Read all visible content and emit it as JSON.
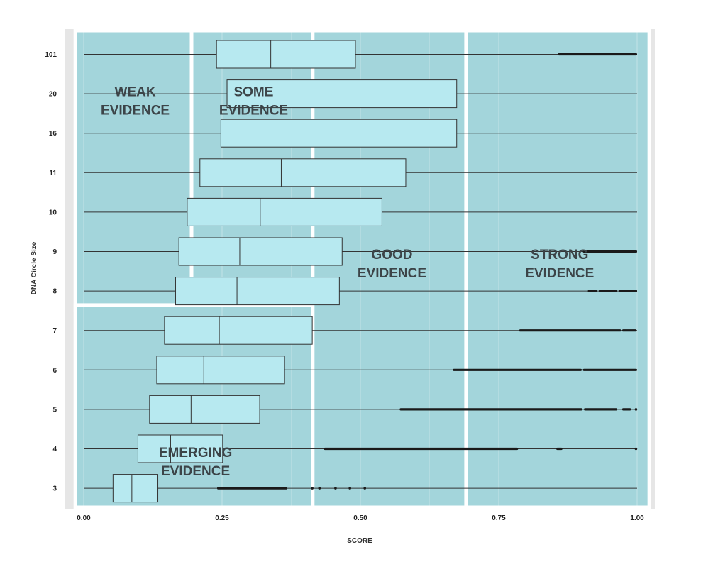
{
  "chart_data": {
    "type": "boxplot",
    "title": "",
    "xlabel": "SCORE",
    "ylabel": "DNA Circle Size",
    "xlim": [
      0,
      1
    ],
    "x_ticks": [
      "0.00",
      "0.25",
      "0.50",
      "0.75",
      "1.00"
    ],
    "categories": [
      "3",
      "4",
      "5",
      "6",
      "7",
      "8",
      "9",
      "10",
      "11",
      "16",
      "20",
      "101"
    ],
    "series": [
      {
        "category": "3",
        "whisker_low": 0.0,
        "q1": 0.053,
        "median": 0.087,
        "q3": 0.134,
        "whisker_high": 1.0,
        "outlier_ranges": [
          [
            0.243,
            0.366
          ]
        ],
        "outliers": [
          0.413,
          0.426,
          0.455,
          0.481,
          0.508
        ]
      },
      {
        "category": "4",
        "whisker_low": 0.0,
        "q1": 0.098,
        "median": 0.157,
        "q3": 0.251,
        "whisker_high": 1.0,
        "outlier_ranges": [
          [
            0.436,
            0.783
          ],
          [
            0.856,
            0.863
          ]
        ],
        "outliers": [
          0.998
        ]
      },
      {
        "category": "5",
        "whisker_low": 0.0,
        "q1": 0.119,
        "median": 0.194,
        "q3": 0.318,
        "whisker_high": 1.0,
        "outlier_ranges": [
          [
            0.573,
            0.899
          ],
          [
            0.906,
            0.962
          ],
          [
            0.975,
            0.987
          ]
        ],
        "outliers": [
          0.998
        ]
      },
      {
        "category": "6",
        "whisker_low": 0.0,
        "q1": 0.132,
        "median": 0.217,
        "q3": 0.363,
        "whisker_high": 1.0,
        "outlier_ranges": [
          [
            0.669,
            0.898
          ],
          [
            0.904,
            0.998
          ]
        ],
        "outliers": []
      },
      {
        "category": "7",
        "whisker_low": 0.0,
        "q1": 0.146,
        "median": 0.245,
        "q3": 0.413,
        "whisker_high": 1.0,
        "outlier_ranges": [
          [
            0.789,
            0.969
          ],
          [
            0.975,
            0.997
          ]
        ],
        "outliers": []
      },
      {
        "category": "8",
        "whisker_low": 0.0,
        "q1": 0.166,
        "median": 0.277,
        "q3": 0.462,
        "whisker_high": 1.0,
        "outlier_ranges": [
          [
            0.913,
            0.926
          ],
          [
            0.934,
            0.962
          ],
          [
            0.969,
            0.998
          ]
        ],
        "outliers": []
      },
      {
        "category": "9",
        "whisker_low": 0.0,
        "q1": 0.172,
        "median": 0.282,
        "q3": 0.467,
        "whisker_high": 1.0,
        "outlier_ranges": [
          [
            0.904,
            0.998
          ]
        ],
        "outliers": []
      },
      {
        "category": "10",
        "whisker_low": 0.0,
        "q1": 0.187,
        "median": 0.319,
        "q3": 0.539,
        "whisker_high": 1.0,
        "outlier_ranges": [],
        "outliers": []
      },
      {
        "category": "11",
        "whisker_low": 0.0,
        "q1": 0.21,
        "median": 0.357,
        "q3": 0.582,
        "whisker_high": 1.0,
        "outlier_ranges": [],
        "outliers": []
      },
      {
        "category": "16",
        "whisker_low": 0.0,
        "q1": 0.248,
        "median": 0.248,
        "q3": 0.674,
        "whisker_high": 1.0,
        "outlier_ranges": [],
        "outliers": []
      },
      {
        "category": "20",
        "whisker_low": 0.0,
        "q1": 0.259,
        "median": 0.259,
        "q3": 0.674,
        "whisker_high": 1.0,
        "outlier_ranges": [],
        "outliers": []
      },
      {
        "category": "101",
        "whisker_low": 0.0,
        "q1": 0.24,
        "median": 0.338,
        "q3": 0.491,
        "whisker_high": 1.0,
        "outlier_ranges": [
          [
            0.859,
            0.998
          ]
        ],
        "outliers": []
      }
    ],
    "regions": [
      {
        "id": "weak",
        "label_lines": [
          "WEAK",
          "EVIDENCE"
        ],
        "x_range": [
          -0.01,
          0.2
        ],
        "y_range": [
          "8",
          "101"
        ]
      },
      {
        "id": "some",
        "label_lines": [
          "SOME",
          "EVIDENCE"
        ],
        "x_range": [
          0.2,
          0.419
        ],
        "y_range": [
          "8",
          "101"
        ]
      },
      {
        "id": "emerging",
        "label_lines": [
          "EMERGING",
          "EVIDENCE"
        ],
        "x_range": [
          -0.01,
          0.419
        ],
        "y_range": [
          "3",
          "7"
        ]
      },
      {
        "id": "good",
        "label_lines": [
          "GOOD",
          "EVIDENCE"
        ],
        "x_range": [
          0.419,
          0.696
        ],
        "y_range": [
          "3",
          "101"
        ]
      },
      {
        "id": "strong",
        "label_lines": [
          "STRONG",
          "EVIDENCE"
        ],
        "x_range": [
          0.696,
          1.022
        ],
        "y_range": [
          "3",
          "101"
        ]
      }
    ],
    "grid": true,
    "legend": "none",
    "colors": {
      "panel_background": "#e6e6e6",
      "region_fill": "#a3d5db",
      "region_border": "#ffffff",
      "box_fill": "#b7e9f0",
      "line": "#333333",
      "outlier": "#1a1a1a",
      "label": "#3c4448"
    }
  }
}
